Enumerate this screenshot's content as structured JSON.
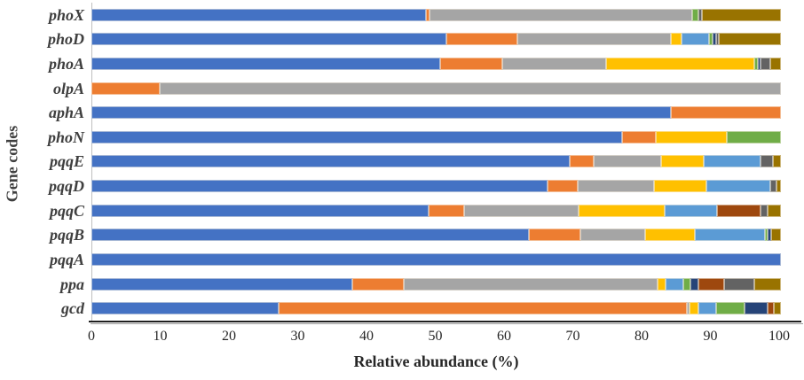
{
  "axis": {
    "x_label": "Relative abundance (%)",
    "y_label": "Gene codes"
  },
  "colors": {
    "axis_line": "#1f1f1f",
    "axis_line_shadow": "#9b9b9b",
    "plot_left_border": "#bfbfbf",
    "gene_label_text": "#3f3f3f",
    "tick_text": "#262626"
  },
  "chart_data": {
    "type": "bar",
    "orientation": "horizontal",
    "stacked": true,
    "title": "",
    "xlabel": "Relative abundance (%)",
    "ylabel": "Gene codes",
    "xlim": [
      0,
      100
    ],
    "x_ticks": [
      0,
      10,
      20,
      30,
      40,
      50,
      60,
      70,
      80,
      90,
      100
    ],
    "grid": false,
    "legend_position": "none",
    "categories": [
      "phoX",
      "phoD",
      "phoA",
      "olpA",
      "aphA",
      "phoN",
      "pqqE",
      "pqqD",
      "pqqC",
      "pqqB",
      "pqqA",
      "ppa",
      "gcd"
    ],
    "series": [
      {
        "name": "blue",
        "color": "#4472C4",
        "values": [
          48.5,
          51.5,
          50.6,
          0,
          84.1,
          77.0,
          69.4,
          66.2,
          48.9,
          63.5,
          100,
          37.9,
          27.2
        ]
      },
      {
        "name": "orange",
        "color": "#ED7D31",
        "values": [
          0.5,
          10.3,
          9.0,
          9.9,
          15.9,
          4.9,
          3.4,
          4.3,
          5.2,
          7.4,
          0,
          7.4,
          59.2
        ]
      },
      {
        "name": "gray",
        "color": "#A5A5A5",
        "values": [
          38.1,
          22.3,
          15.0,
          90.1,
          0,
          0,
          9.8,
          11.1,
          16.5,
          9.4,
          0,
          36.8,
          0.4
        ]
      },
      {
        "name": "gold",
        "color": "#FFC000",
        "values": [
          0,
          1.5,
          21.5,
          0,
          0,
          10.2,
          6.2,
          7.6,
          12.6,
          7.2,
          0,
          1.2,
          1.2
        ]
      },
      {
        "name": "light-blue",
        "color": "#5B9BD5",
        "values": [
          0,
          4.0,
          0,
          0,
          0,
          0,
          8.3,
          9.2,
          7.6,
          10.2,
          0,
          2.6,
          2.6
        ]
      },
      {
        "name": "green",
        "color": "#70AD47",
        "values": [
          0.9,
          0.5,
          0.5,
          0,
          0,
          7.9,
          0,
          0,
          0,
          0.4,
          0,
          1.0,
          4.1
        ]
      },
      {
        "name": "dark-blue",
        "color": "#264478",
        "values": [
          0,
          0.5,
          0.5,
          0,
          0,
          0,
          0,
          0,
          0,
          0.5,
          0,
          1.2,
          3.4
        ]
      },
      {
        "name": "brown",
        "color": "#9E480E",
        "values": [
          0,
          0,
          0,
          0,
          0,
          0,
          0,
          0,
          6.2,
          0,
          0,
          3.7,
          0.9
        ]
      },
      {
        "name": "dark-gray",
        "color": "#636363",
        "values": [
          0.6,
          0.4,
          1.4,
          0,
          0,
          0,
          1.8,
          0.9,
          1.1,
          0,
          0,
          4.3,
          0
        ]
      },
      {
        "name": "dark-yellow",
        "color": "#997300",
        "values": [
          11.4,
          9.0,
          1.5,
          0,
          0,
          0,
          1.1,
          0.7,
          1.9,
          1.4,
          0,
          3.9,
          1.0
        ]
      }
    ]
  }
}
